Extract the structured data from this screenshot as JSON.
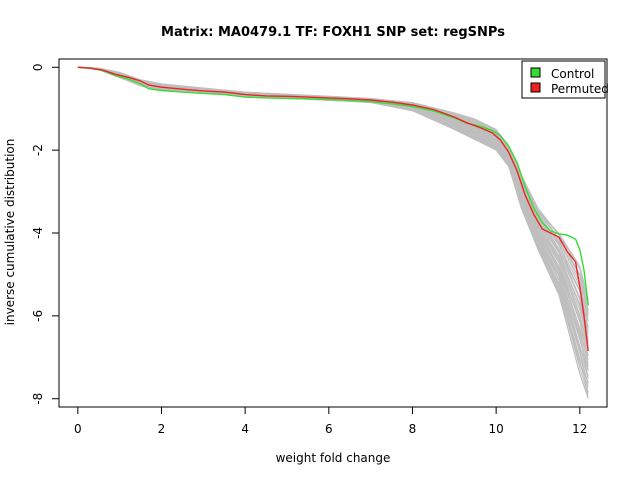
{
  "chart_data": {
    "type": "line",
    "title": "Matrix: MA0479.1 TF: FOXH1 SNP set: regSNPs",
    "xlabel": "weight fold change",
    "ylabel": "inverse cumulative distribution",
    "xlim": [
      -0.45,
      12.65
    ],
    "ylim": [
      -8.2,
      0.2
    ],
    "xticks": [
      0,
      2,
      4,
      6,
      8,
      10,
      12
    ],
    "yticks": [
      0,
      -2,
      -4,
      -6,
      -8
    ],
    "legend_position": "top-right",
    "grid": false,
    "legend": [
      {
        "label": "Control",
        "color": "#33dd33"
      },
      {
        "label": "Permuted",
        "color": "#ee2222"
      }
    ],
    "background_series": {
      "color": "#bebebe",
      "count": 40,
      "description_of_values": "grey permuted replicate curves",
      "x": [
        0,
        0.5,
        1.0,
        1.5,
        2.0,
        3.0,
        4.0,
        5.0,
        6.0,
        7.0,
        8.0,
        9.0,
        9.5,
        10.0,
        10.3,
        10.6,
        11.0,
        11.5,
        12.0,
        12.2
      ],
      "y_min": [
        0,
        -0.06,
        -0.25,
        -0.45,
        -0.55,
        -0.6,
        -0.7,
        -0.75,
        -0.8,
        -0.85,
        -1.05,
        -1.5,
        -1.75,
        -2.0,
        -2.4,
        -3.4,
        -4.4,
        -5.5,
        -7.4,
        -8.0
      ],
      "y_max": [
        0,
        -0.02,
        -0.12,
        -0.3,
        -0.4,
        -0.5,
        -0.6,
        -0.65,
        -0.7,
        -0.75,
        -0.85,
        -1.1,
        -1.25,
        -1.5,
        -1.9,
        -2.6,
        -3.4,
        -4.0,
        -4.8,
        -5.6
      ]
    },
    "series": [
      {
        "name": "Control",
        "color": "#33dd33",
        "x": [
          0,
          0.3,
          0.6,
          0.9,
          1.2,
          1.5,
          1.7,
          2.0,
          2.5,
          3.0,
          3.5,
          4.0,
          4.5,
          5.0,
          5.5,
          6.0,
          6.5,
          7.0,
          7.5,
          8.0,
          8.5,
          9.0,
          9.3,
          9.6,
          9.9,
          10.1,
          10.3,
          10.5,
          10.7,
          10.9,
          11.1,
          11.3,
          11.5,
          11.7,
          11.9,
          12.0,
          12.1,
          12.2
        ],
        "y": [
          0,
          -0.02,
          -0.08,
          -0.2,
          -0.28,
          -0.4,
          -0.52,
          -0.56,
          -0.6,
          -0.63,
          -0.66,
          -0.72,
          -0.74,
          -0.75,
          -0.76,
          -0.78,
          -0.8,
          -0.83,
          -0.88,
          -0.95,
          -1.05,
          -1.22,
          -1.35,
          -1.42,
          -1.52,
          -1.65,
          -1.9,
          -2.3,
          -2.9,
          -3.4,
          -3.75,
          -3.95,
          -4.02,
          -4.05,
          -4.15,
          -4.4,
          -4.9,
          -5.75
        ]
      },
      {
        "name": "Permuted",
        "color": "#ee2222",
        "x": [
          0,
          0.3,
          0.6,
          0.9,
          1.2,
          1.5,
          1.7,
          2.0,
          2.5,
          3.0,
          3.5,
          4.0,
          4.5,
          5.0,
          5.5,
          6.0,
          6.5,
          7.0,
          7.5,
          8.0,
          8.5,
          9.0,
          9.3,
          9.6,
          9.9,
          10.1,
          10.3,
          10.5,
          10.7,
          10.9,
          11.1,
          11.3,
          11.5,
          11.7,
          11.9,
          12.0,
          12.1,
          12.2
        ],
        "y": [
          0,
          -0.02,
          -0.07,
          -0.17,
          -0.24,
          -0.33,
          -0.43,
          -0.48,
          -0.53,
          -0.57,
          -0.6,
          -0.66,
          -0.69,
          -0.7,
          -0.72,
          -0.74,
          -0.76,
          -0.79,
          -0.84,
          -0.91,
          -1.02,
          -1.2,
          -1.34,
          -1.45,
          -1.58,
          -1.75,
          -2.05,
          -2.5,
          -3.1,
          -3.55,
          -3.9,
          -4.0,
          -4.1,
          -4.45,
          -4.7,
          -5.3,
          -6.0,
          -6.85
        ]
      }
    ]
  }
}
